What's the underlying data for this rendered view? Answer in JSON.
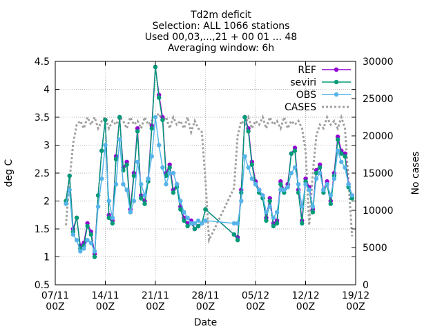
{
  "chart_data": {
    "type": "line",
    "title_lines": [
      "Td2m deficit",
      "Selection: ALL   1066 stations",
      "Used 00,03,...,21 + 00 01 ... 48",
      "Averaging window:  6h"
    ],
    "xlabel": "Date",
    "ylabel": "deg C",
    "y2label": "No cases",
    "xlim": [
      "2023-11-07T00",
      "2023-12-19T00"
    ],
    "ylim": [
      0.5,
      4.5
    ],
    "y2lim": [
      0,
      30000
    ],
    "x_ticks": [
      {
        "line1": "07/11",
        "line2": "00Z",
        "day": 0
      },
      {
        "line1": "14/11",
        "line2": "00Z",
        "day": 7
      },
      {
        "line1": "21/11",
        "line2": "00Z",
        "day": 14
      },
      {
        "line1": "28/11",
        "line2": "00Z",
        "day": 21
      },
      {
        "line1": "05/12",
        "line2": "00Z",
        "day": 28
      },
      {
        "line1": "12/12",
        "line2": "00Z",
        "day": 35
      },
      {
        "line1": "19/12",
        "line2": "00Z",
        "day": 42
      }
    ],
    "y_ticks": [
      "0.5",
      "1",
      "1.5",
      "2",
      "2.5",
      "3",
      "3.5",
      "4",
      "4.5"
    ],
    "y2_ticks": [
      "0",
      "5000",
      "10000",
      "15000",
      "20000",
      "25000",
      "30000"
    ],
    "grid": true,
    "legend_position": "top-right",
    "series": [
      {
        "name": "REF",
        "color": "#9400d3",
        "marker": "circle",
        "axis": "y",
        "x": [
          1.5,
          2,
          2.5,
          3,
          3.5,
          4,
          4.5,
          5,
          5.5,
          6,
          6.5,
          7,
          7.5,
          8,
          8.5,
          9,
          9.5,
          10,
          10.5,
          11,
          11.5,
          12,
          12.5,
          13,
          13.5,
          14,
          14.5,
          15,
          15.5,
          16,
          16.5,
          17,
          17.5,
          18,
          18.5,
          19,
          19.5,
          20,
          20.5,
          21,
          25,
          25.5,
          26,
          26.5,
          27,
          27.5,
          28,
          28.5,
          29,
          29.5,
          30,
          30.5,
          31,
          31.5,
          32,
          32.5,
          33,
          33.5,
          34,
          34.5,
          35,
          35.5,
          36,
          36.5,
          37,
          37.5,
          38,
          38.5,
          39,
          39.5,
          40,
          40.5,
          41,
          41.5
        ],
        "y": [
          2.0,
          2.45,
          1.5,
          1.7,
          1.2,
          1.25,
          1.6,
          1.45,
          1.05,
          2.1,
          2.9,
          3.45,
          1.75,
          1.65,
          2.8,
          3.5,
          2.6,
          2.7,
          1.85,
          2.5,
          3.3,
          2.1,
          2.0,
          2.4,
          3.35,
          4.4,
          3.9,
          3.5,
          2.5,
          2.65,
          2.2,
          2.3,
          1.9,
          1.7,
          1.6,
          1.65,
          1.5,
          1.55,
          1.6,
          1.85,
          1.4,
          1.35,
          2.2,
          3.5,
          3.3,
          2.7,
          2.35,
          2.2,
          2.1,
          1.7,
          2.05,
          1.6,
          1.65,
          2.35,
          2.2,
          2.3,
          2.85,
          2.95,
          2.2,
          1.65,
          2.4,
          2.25,
          1.85,
          2.55,
          2.65,
          2.2,
          2.35,
          2.0,
          2.5,
          3.15,
          2.9,
          2.85,
          2.3,
          2.1
        ]
      },
      {
        "name": "seviri",
        "color": "#009b77",
        "marker": "circle",
        "axis": "y",
        "x": [
          1.5,
          2,
          2.5,
          3,
          3.5,
          4,
          4.5,
          5,
          5.5,
          6,
          6.5,
          7,
          7.5,
          8,
          8.5,
          9,
          9.5,
          10,
          10.5,
          11,
          11.5,
          12,
          12.5,
          13,
          13.5,
          14,
          14.5,
          15,
          15.5,
          16,
          16.5,
          17,
          17.5,
          18,
          18.5,
          19,
          19.5,
          20,
          20.5,
          21,
          25,
          25.5,
          26,
          26.5,
          27,
          27.5,
          28,
          28.5,
          29,
          29.5,
          30,
          30.5,
          31,
          31.5,
          32,
          32.5,
          33,
          33.5,
          34,
          34.5,
          35,
          35.5,
          36,
          36.5,
          37,
          37.5,
          38,
          38.5,
          39,
          39.5,
          40,
          40.5,
          41,
          41.5
        ],
        "y": [
          2.0,
          2.45,
          1.45,
          1.7,
          1.15,
          1.2,
          1.55,
          1.4,
          1.0,
          2.1,
          2.9,
          3.45,
          1.7,
          1.6,
          2.75,
          3.5,
          2.55,
          2.65,
          1.8,
          2.45,
          3.25,
          2.05,
          1.95,
          2.35,
          3.3,
          4.4,
          3.85,
          3.45,
          2.45,
          2.6,
          2.15,
          2.25,
          1.85,
          1.65,
          1.55,
          1.6,
          1.5,
          1.55,
          1.6,
          1.85,
          1.4,
          1.3,
          2.15,
          3.5,
          3.25,
          2.65,
          2.3,
          2.15,
          2.05,
          1.65,
          2.0,
          1.55,
          1.6,
          2.3,
          2.15,
          2.25,
          2.85,
          2.9,
          2.15,
          1.6,
          2.35,
          2.2,
          1.8,
          2.5,
          2.6,
          2.15,
          2.3,
          1.95,
          2.45,
          3.1,
          2.85,
          2.8,
          2.25,
          2.05
        ]
      },
      {
        "name": "OBS",
        "color": "#56b4e9",
        "marker": "circle",
        "axis": "y",
        "x": [
          1.5,
          2,
          2.5,
          3,
          3.5,
          4,
          4.5,
          5,
          5.5,
          6,
          6.5,
          7,
          7.5,
          8,
          8.5,
          9,
          9.5,
          10,
          10.5,
          11,
          11.5,
          12,
          12.5,
          13,
          13.5,
          14,
          14.5,
          15,
          15.5,
          16,
          16.5,
          17,
          17.5,
          18,
          18.5,
          19,
          19.5,
          20,
          20.5,
          21,
          25,
          25.5,
          26,
          26.5,
          27,
          27.5,
          28,
          28.5,
          29,
          29.5,
          30,
          30.5,
          31,
          31.5,
          32,
          32.5,
          33,
          33.5,
          34,
          34.5,
          35,
          35.5,
          36,
          36.5,
          37,
          37.5,
          38,
          38.5,
          39,
          39.5,
          40,
          40.5,
          41,
          41.5
        ],
        "y": [
          1.95,
          2.2,
          1.4,
          1.3,
          1.1,
          1.15,
          1.3,
          1.25,
          1.1,
          1.9,
          2.4,
          3.0,
          2.0,
          1.7,
          2.3,
          3.1,
          2.3,
          2.2,
          1.8,
          2.0,
          2.7,
          2.3,
          2.1,
          2.4,
          2.8,
          3.5,
          3.0,
          2.6,
          2.3,
          2.5,
          2.5,
          2.3,
          2.0,
          1.8,
          1.7,
          1.6,
          1.6,
          1.65,
          1.6,
          1.65,
          1.6,
          1.6,
          2.0,
          2.8,
          2.6,
          2.4,
          2.3,
          2.2,
          2.1,
          1.8,
          1.9,
          1.7,
          1.8,
          2.2,
          2.2,
          2.25,
          2.5,
          2.6,
          2.3,
          1.9,
          2.3,
          2.2,
          1.9,
          2.4,
          2.5,
          2.2,
          2.3,
          2.1,
          2.4,
          2.9,
          2.7,
          2.6,
          2.3,
          2.1
        ]
      },
      {
        "name": "CASES",
        "color": "#a0a0a0",
        "marker": "none",
        "axis": "y2",
        "x": [
          1.5,
          2,
          2.5,
          3,
          3.5,
          4,
          4.5,
          5,
          5.5,
          6,
          6.5,
          7,
          7.5,
          8,
          8.5,
          9,
          9.5,
          10,
          10.5,
          11,
          11.5,
          12,
          12.5,
          13,
          13.5,
          14,
          14.5,
          15,
          15.5,
          16,
          16.5,
          17,
          17.5,
          18,
          18.5,
          19,
          19.5,
          20,
          20.5,
          21,
          21.5,
          22,
          25,
          25.5,
          26,
          26.5,
          27,
          27.5,
          28,
          28.5,
          29,
          29.5,
          30,
          30.5,
          31,
          31.5,
          32,
          32.5,
          33,
          33.5,
          34,
          34.5,
          35,
          35.5,
          36,
          36.5,
          37,
          37.5,
          38,
          38.5,
          39,
          39.5,
          40,
          40.5,
          41,
          41.5
        ],
        "y": [
          8000,
          14000,
          19000,
          21500,
          22000,
          21000,
          22500,
          21500,
          22500,
          21000,
          22000,
          22500,
          21000,
          22000,
          21500,
          22500,
          22000,
          21000,
          22500,
          21500,
          22000,
          21000,
          22500,
          21500,
          22000,
          22500,
          23000,
          22000,
          22500,
          21000,
          22500,
          21500,
          22000,
          21000,
          22500,
          20500,
          22000,
          21000,
          20500,
          14000,
          6000,
          7000,
          13000,
          20000,
          22000,
          21500,
          22500,
          21000,
          22000,
          21500,
          22500,
          21000,
          22500,
          21500,
          22000,
          21000,
          22500,
          21000,
          22000,
          21500,
          22000,
          21000,
          18000,
          8000,
          15000,
          20000,
          21500,
          21000,
          22500,
          21500,
          22000,
          21000,
          22500,
          21000,
          14000,
          6500
        ]
      }
    ]
  }
}
